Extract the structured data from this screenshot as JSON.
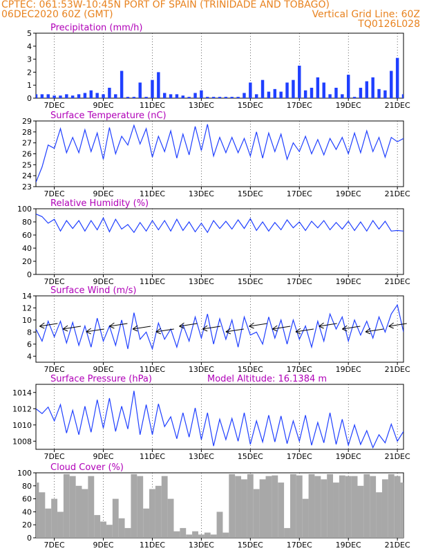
{
  "header": {
    "line1": "CPTEC:   061:53W-10:45N   PORT OF SPAIN (TRINIDADE AND TOBAGO)",
    "line2_left": "06DEC2020 60Z (GMT)",
    "line2_right": "Vertical Grid Line: 60Z",
    "line3_right": "TQ0126L028",
    "color": "#e8821e"
  },
  "x_labels": [
    "7DEC",
    "9DEC",
    "11DEC",
    "13DEC",
    "15DEC",
    "17DEC",
    "19DEC",
    "21DEC"
  ],
  "chart_data": [
    {
      "type": "bar",
      "title": "Precipitation (mm/h)",
      "color": "#1f3fff",
      "ylim": [
        0,
        5
      ],
      "yticks": [
        "0",
        "1",
        "2",
        "3",
        "4",
        "5"
      ],
      "x_days": [
        0.0,
        0.25,
        0.5,
        0.75,
        1.0,
        1.25,
        1.5,
        1.75,
        2.0,
        2.25,
        2.5,
        2.75,
        3.0,
        3.25,
        3.5,
        3.75,
        4.0,
        4.25,
        4.5,
        4.75,
        5.0,
        5.25,
        5.5,
        5.75,
        6.0,
        6.25,
        6.5,
        6.75,
        7.0,
        7.25,
        7.5,
        7.75,
        8.0,
        8.25,
        8.5,
        8.75,
        9.0,
        9.25,
        9.5,
        9.75,
        10.0,
        10.25,
        10.5,
        10.75,
        11.0,
        11.25,
        11.5,
        11.75,
        12.0,
        12.25,
        12.5,
        12.75,
        13.0,
        13.25,
        13.5,
        13.75,
        14.0,
        14.25,
        14.5,
        14.75,
        15.0
      ],
      "values": [
        0.3,
        0.3,
        0.3,
        0.2,
        0.2,
        0.3,
        0.2,
        0.3,
        0.4,
        0.6,
        0.4,
        0.3,
        0.8,
        0.3,
        2.1,
        0.1,
        0.1,
        1.2,
        0.1,
        1.4,
        2.0,
        0.4,
        0.3,
        0.3,
        0.2,
        0.1,
        0.4,
        0.6,
        0.1,
        0.1,
        0.1,
        0.1,
        0.1,
        0.1,
        0.4,
        1.2,
        0.3,
        1.4,
        0.5,
        0.7,
        0.5,
        1.2,
        1.4,
        2.5,
        0.6,
        0.8,
        1.6,
        1.2,
        0.3,
        0.8,
        0.3,
        1.8,
        0.1,
        0.8,
        1.3,
        1.6,
        0.7,
        0.6,
        2.1,
        3.1,
        0.3
      ],
      "ylabel": ""
    },
    {
      "type": "line",
      "title": "Surface Temperature (nC)",
      "color": "#1f3fff",
      "ylim": [
        23,
        29
      ],
      "yticks": [
        "23",
        "24",
        "25",
        "26",
        "27",
        "28",
        "29"
      ],
      "x_days": [
        0.0,
        0.25,
        0.5,
        0.75,
        1.0,
        1.25,
        1.5,
        1.75,
        2.0,
        2.25,
        2.5,
        2.75,
        3.0,
        3.25,
        3.5,
        3.75,
        4.0,
        4.25,
        4.5,
        4.75,
        5.0,
        5.25,
        5.5,
        5.75,
        6.0,
        6.25,
        6.5,
        6.75,
        7.0,
        7.25,
        7.5,
        7.75,
        8.0,
        8.25,
        8.5,
        8.75,
        9.0,
        9.25,
        9.5,
        9.75,
        10.0,
        10.25,
        10.5,
        10.75,
        11.0,
        11.25,
        11.5,
        11.75,
        12.0,
        12.25,
        12.5,
        12.75,
        13.0,
        13.25,
        13.5,
        13.75,
        14.0,
        14.25,
        14.5,
        14.75,
        15.0
      ],
      "values": [
        23.4,
        24.8,
        26.8,
        26.5,
        28.3,
        26.1,
        27.5,
        26.1,
        28.2,
        26.2,
        27.9,
        25.5,
        28.4,
        26.0,
        27.6,
        26.8,
        28.6,
        26.9,
        28.3,
        25.7,
        27.6,
        26.2,
        28.1,
        25.6,
        27.8,
        25.9,
        28.5,
        26.3,
        28.7,
        25.8,
        27.5,
        26.1,
        27.5,
        26.1,
        27.4,
        25.8,
        28.0,
        25.6,
        27.9,
        26.2,
        27.8,
        25.5,
        27.0,
        26.2,
        27.6,
        26.0,
        27.3,
        25.9,
        27.4,
        26.4,
        27.5,
        26.0,
        27.9,
        26.1,
        28.1,
        26.2,
        27.5,
        25.7,
        27.5,
        27.1,
        27.4
      ],
      "ylabel": ""
    },
    {
      "type": "line",
      "title": "Relative Humidity (%)",
      "color": "#1f3fff",
      "ylim": [
        0,
        100
      ],
      "yticks": [
        "0",
        "20",
        "40",
        "60",
        "80",
        "100"
      ],
      "x_days": [
        0.0,
        0.25,
        0.5,
        0.75,
        1.0,
        1.25,
        1.5,
        1.75,
        2.0,
        2.25,
        2.5,
        2.75,
        3.0,
        3.25,
        3.5,
        3.75,
        4.0,
        4.25,
        4.5,
        4.75,
        5.0,
        5.25,
        5.5,
        5.75,
        6.0,
        6.25,
        6.5,
        6.75,
        7.0,
        7.25,
        7.5,
        7.75,
        8.0,
        8.25,
        8.5,
        8.75,
        9.0,
        9.25,
        9.5,
        9.75,
        10.0,
        10.25,
        10.5,
        10.75,
        11.0,
        11.25,
        11.5,
        11.75,
        12.0,
        12.25,
        12.5,
        12.75,
        13.0,
        13.25,
        13.5,
        13.75,
        14.0,
        14.25,
        14.5,
        14.75,
        15.0
      ],
      "values": [
        92,
        88,
        78,
        84,
        66,
        82,
        70,
        82,
        66,
        82,
        68,
        86,
        65,
        84,
        69,
        76,
        64,
        79,
        66,
        82,
        68,
        82,
        66,
        84,
        67,
        80,
        65,
        78,
        64,
        82,
        70,
        81,
        69,
        83,
        70,
        85,
        67,
        80,
        66,
        79,
        68,
        83,
        71,
        80,
        67,
        81,
        71,
        82,
        68,
        79,
        69,
        81,
        67,
        80,
        66,
        82,
        69,
        81,
        66,
        67,
        66
      ],
      "ylabel": ""
    },
    {
      "type": "line",
      "title": "Surface Wind (m/s)",
      "color": "#1f3fff",
      "ylim": [
        3,
        14
      ],
      "yticks": [
        "4",
        "6",
        "8",
        "10",
        "12",
        "14"
      ],
      "x_days": [
        0.0,
        0.25,
        0.5,
        0.75,
        1.0,
        1.25,
        1.5,
        1.75,
        2.0,
        2.25,
        2.5,
        2.75,
        3.0,
        3.25,
        3.5,
        3.75,
        4.0,
        4.25,
        4.5,
        4.75,
        5.0,
        5.25,
        5.5,
        5.75,
        6.0,
        6.25,
        6.5,
        6.75,
        7.0,
        7.25,
        7.5,
        7.75,
        8.0,
        8.25,
        8.5,
        8.75,
        9.0,
        9.25,
        9.5,
        9.75,
        10.0,
        10.25,
        10.5,
        10.75,
        11.0,
        11.25,
        11.5,
        11.75,
        12.0,
        12.25,
        12.5,
        12.75,
        13.0,
        13.25,
        13.5,
        13.75,
        14.0,
        14.25,
        14.5,
        14.75,
        15.0
      ],
      "values": [
        8.5,
        6.5,
        9.8,
        7.2,
        9.8,
        6.2,
        9.6,
        5.8,
        9.0,
        5.5,
        10.3,
        6.5,
        9.0,
        5.8,
        10.0,
        5.2,
        11.2,
        6.8,
        8.0,
        5.2,
        9.5,
        6.8,
        8.5,
        5.5,
        9.2,
        6.5,
        10.5,
        7.0,
        11.0,
        6.0,
        10.2,
        6.8,
        10.0,
        5.5,
        10.5,
        7.5,
        8.0,
        6.0,
        10.5,
        7.0,
        10.0,
        6.0,
        10.0,
        6.8,
        9.0,
        5.5,
        9.8,
        6.5,
        11.0,
        8.5,
        10.5,
        6.5,
        10.0,
        7.5,
        9.8,
        7.0,
        10.5,
        8.0,
        11.0,
        12.5,
        8.0
      ],
      "ylabel": ""
    },
    {
      "type": "line",
      "title": "Surface Pressure (hPa)",
      "annotation": "Model Altitude: 16.1384 m",
      "color": "#1f3fff",
      "ylim": [
        1007,
        1015
      ],
      "yticks": [
        "1008",
        "1010",
        "1012",
        "1014"
      ],
      "x_days": [
        0.0,
        0.25,
        0.5,
        0.75,
        1.0,
        1.25,
        1.5,
        1.75,
        2.0,
        2.25,
        2.5,
        2.75,
        3.0,
        3.25,
        3.5,
        3.75,
        4.0,
        4.25,
        4.5,
        4.75,
        5.0,
        5.25,
        5.5,
        5.75,
        6.0,
        6.25,
        6.5,
        6.75,
        7.0,
        7.25,
        7.5,
        7.75,
        8.0,
        8.25,
        8.5,
        8.75,
        9.0,
        9.25,
        9.5,
        9.75,
        10.0,
        10.25,
        10.5,
        10.75,
        11.0,
        11.25,
        11.5,
        11.75,
        12.0,
        12.25,
        12.5,
        12.75,
        13.0,
        13.25,
        13.5,
        13.75,
        14.0,
        14.25,
        14.5,
        14.75,
        15.0
      ],
      "values": [
        1012.0,
        1011.4,
        1012.2,
        1010.5,
        1012.5,
        1009.0,
        1011.8,
        1008.8,
        1012.3,
        1009.1,
        1013.1,
        1009.6,
        1013.3,
        1009.2,
        1012.3,
        1009.5,
        1014.2,
        1008.8,
        1012.5,
        1008.8,
        1012.6,
        1009.8,
        1011.0,
        1008.3,
        1011.5,
        1008.5,
        1012.1,
        1008.2,
        1011.5,
        1007.4,
        1010.7,
        1008.2,
        1010.8,
        1008.0,
        1011.5,
        1007.6,
        1010.5,
        1007.9,
        1011.2,
        1007.9,
        1011.1,
        1007.7,
        1010.5,
        1008.0,
        1011.2,
        1007.5,
        1010.3,
        1007.8,
        1011.5,
        1007.6,
        1010.7,
        1007.5,
        1010.0,
        1007.6,
        1009.3,
        1007.2,
        1008.8,
        1007.8,
        1010.1,
        1008.0,
        1009.2
      ],
      "ylabel": ""
    },
    {
      "type": "area",
      "title": "Cloud Cover (%)",
      "color": "#a8a8a8",
      "ylim": [
        0,
        100
      ],
      "yticks": [
        "0",
        "20",
        "40",
        "60",
        "80",
        "100"
      ],
      "x_days": [
        0.0,
        0.25,
        0.5,
        0.75,
        1.0,
        1.25,
        1.5,
        1.75,
        2.0,
        2.25,
        2.5,
        2.75,
        3.0,
        3.25,
        3.5,
        3.75,
        4.0,
        4.25,
        4.5,
        4.75,
        5.0,
        5.25,
        5.5,
        5.75,
        6.0,
        6.25,
        6.5,
        6.75,
        7.0,
        7.25,
        7.5,
        7.75,
        8.0,
        8.25,
        8.5,
        8.75,
        9.0,
        9.25,
        9.5,
        9.75,
        10.0,
        10.25,
        10.5,
        10.75,
        11.0,
        11.25,
        11.5,
        11.75,
        12.0,
        12.25,
        12.5,
        12.75,
        13.0,
        13.25,
        13.5,
        13.75,
        14.0,
        14.25,
        14.5,
        14.75,
        15.0
      ],
      "values": [
        85,
        70,
        45,
        60,
        40,
        98,
        95,
        80,
        75,
        95,
        35,
        25,
        20,
        60,
        30,
        15,
        98,
        95,
        45,
        75,
        80,
        95,
        60,
        10,
        15,
        5,
        10,
        5,
        8,
        5,
        40,
        8,
        98,
        95,
        90,
        98,
        75,
        90,
        95,
        96,
        85,
        15,
        98,
        96,
        60,
        98,
        95,
        90,
        98,
        85,
        96,
        95,
        95,
        80,
        98,
        95,
        70,
        90,
        98,
        95,
        85
      ],
      "ylabel": ""
    }
  ]
}
